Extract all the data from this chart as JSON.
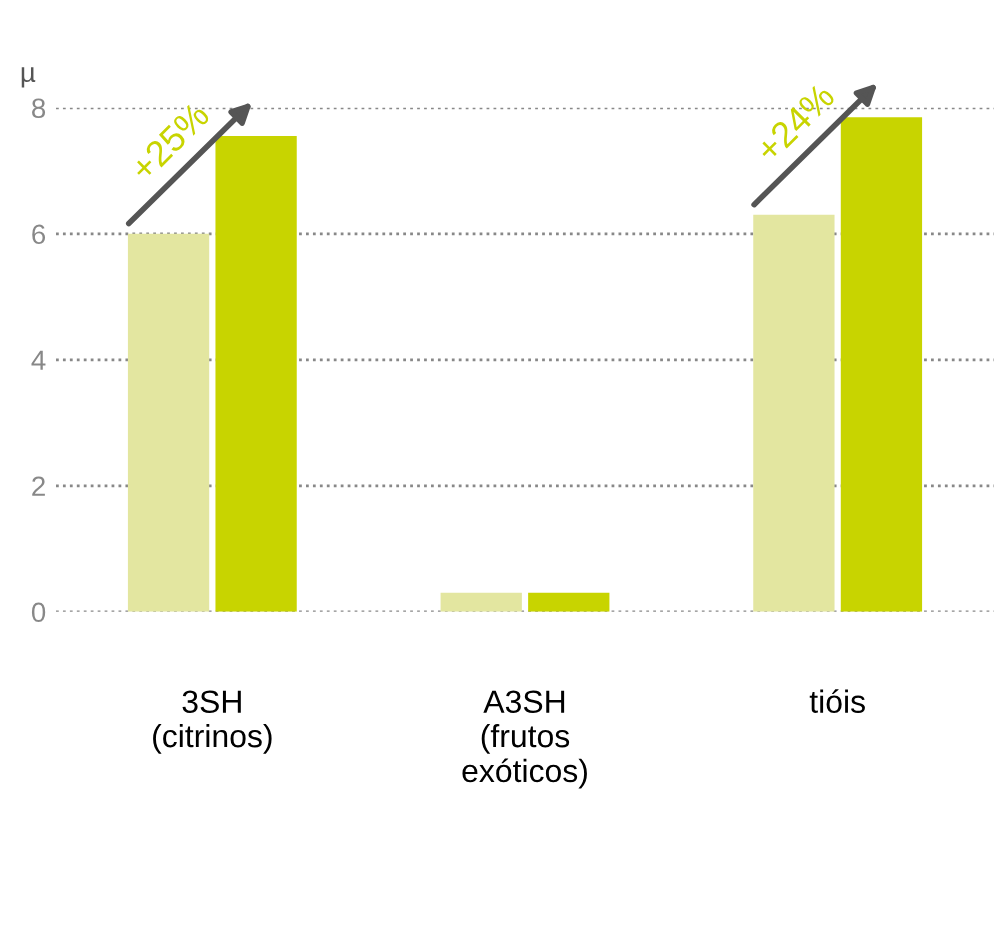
{
  "chart_data": {
    "type": "bar",
    "ylabel": "µ",
    "categories": [
      "3SH\n(citrinos)",
      "A3SH\n(frutos\nexóticos)",
      "tióis"
    ],
    "series": [
      {
        "color": "#e3e6a0",
        "values": [
          6.0,
          0.3,
          6.3
        ]
      },
      {
        "color": "#c8d400",
        "values": [
          7.55,
          0.3,
          7.85
        ]
      }
    ],
    "ylim": [
      0,
      8
    ],
    "yticks": [
      0,
      2,
      4,
      6,
      8
    ],
    "grid": "y",
    "annotations": [
      {
        "text": "+25%",
        "x": "3SH\n(citrinos)",
        "y": 6.0
      },
      {
        "text": "+24%",
        "x": "tióis",
        "y": 6.3
      }
    ]
  }
}
